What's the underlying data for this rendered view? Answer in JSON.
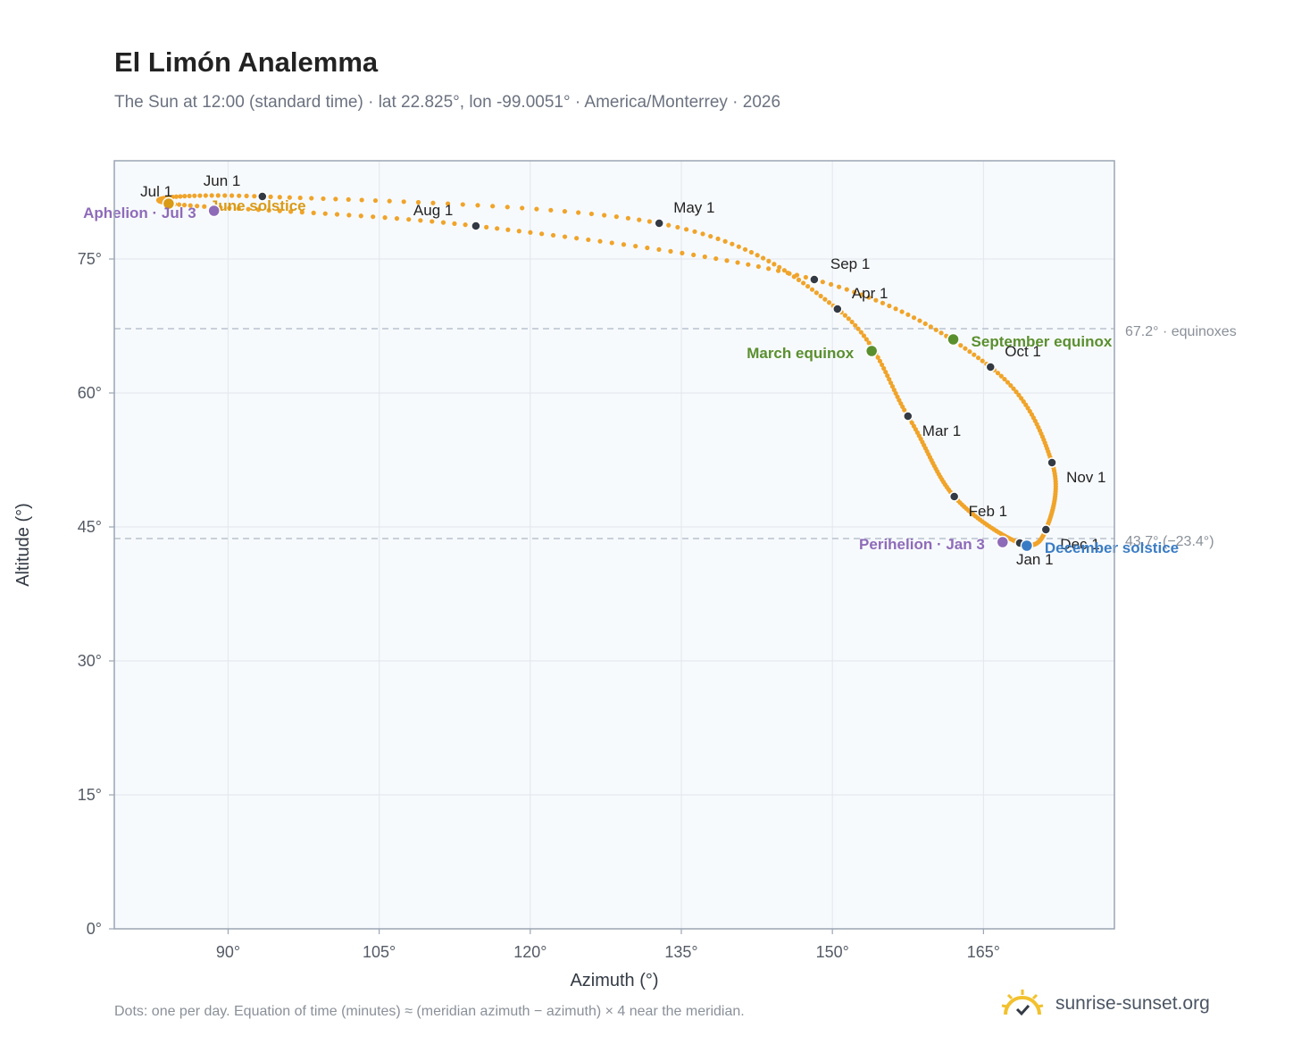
{
  "header": {
    "title": "El Limón Analemma",
    "subtitle": "The Sun at 12:00 (standard time) · lat 22.825°, lon -99.0051° · America/Monterrey · 2026"
  },
  "footer": {
    "note": "Dots: one per day. Equation of time (minutes) ≈ (meridian azimuth − azimuth) × 4 near the meridian.",
    "brand": "sunrise-sunset.org"
  },
  "colors": {
    "path": "#f0a42a",
    "month_marker": "#333a44",
    "june_solstice": "#d99a16",
    "december_solstice": "#3a7cc4",
    "equinox": "#5a8f2e",
    "apsis": "#8e6bb8",
    "reference_line": "#b8c2ce",
    "plot_bg": "#f7fafd",
    "grid": "#e5e9ef",
    "frame": "#9aa5b4"
  },
  "chart_data": {
    "type": "scatter",
    "title": "El Limón Analemma",
    "subtitle": "The Sun at 12:00 (standard time) · lat 22.825°, lon -99.0051° · America/Monterrey · 2026",
    "xlabel": "Azimuth (°)",
    "ylabel": "Altitude (°)",
    "xlim": [
      78.7,
      178
    ],
    "ylim": [
      0,
      86
    ],
    "x_ticks": [
      90,
      105,
      120,
      135,
      150,
      165
    ],
    "y_ticks": [
      0,
      15,
      30,
      45,
      60,
      75
    ],
    "x_tick_labels": [
      "90°",
      "105°",
      "120°",
      "135°",
      "150°",
      "165°"
    ],
    "y_tick_labels": [
      "0°",
      "15°",
      "30°",
      "45°",
      "60°",
      "75°"
    ],
    "grid": true,
    "legend": "none",
    "month_markers": [
      {
        "label": "Jan 1",
        "x": 168.6,
        "y": 43.2
      },
      {
        "label": "Feb 1",
        "x": 162.1,
        "y": 48.4
      },
      {
        "label": "Mar 1",
        "x": 157.5,
        "y": 57.4
      },
      {
        "label": "Apr 1",
        "x": 150.5,
        "y": 69.4
      },
      {
        "label": "May 1",
        "x": 132.8,
        "y": 79.0
      },
      {
        "label": "Jun 1",
        "x": 93.4,
        "y": 82.0
      },
      {
        "label": "Jul 1",
        "x": 84.3,
        "y": 81.2
      },
      {
        "label": "Aug 1",
        "x": 114.6,
        "y": 78.7
      },
      {
        "label": "Sep 1",
        "x": 148.2,
        "y": 72.7
      },
      {
        "label": "Oct 1",
        "x": 165.7,
        "y": 62.9
      },
      {
        "label": "Nov 1",
        "x": 171.8,
        "y": 52.2
      },
      {
        "label": "Dec 1",
        "x": 171.2,
        "y": 44.7
      }
    ],
    "events": [
      {
        "label": "June solstice",
        "x": 84.1,
        "y": 81.2,
        "kind": "june_solstice"
      },
      {
        "label": "December solstice",
        "x": 169.3,
        "y": 42.9,
        "kind": "december_solstice"
      },
      {
        "label": "March equinox",
        "x": 153.9,
        "y": 64.7,
        "kind": "equinox"
      },
      {
        "label": "September equinox",
        "x": 162.0,
        "y": 66.0,
        "kind": "equinox"
      },
      {
        "label": "Aphelion · Jul 3",
        "x": 88.6,
        "y": 80.4,
        "kind": "apsis"
      },
      {
        "label": "Perihelion · Jan 3",
        "x": 166.9,
        "y": 43.3,
        "kind": "apsis"
      }
    ],
    "reference_lines": [
      {
        "label": "67.2° · equinoxes",
        "y": 67.2
      },
      {
        "label": "43.7° (−23.4°)",
        "y": 43.7
      }
    ]
  }
}
